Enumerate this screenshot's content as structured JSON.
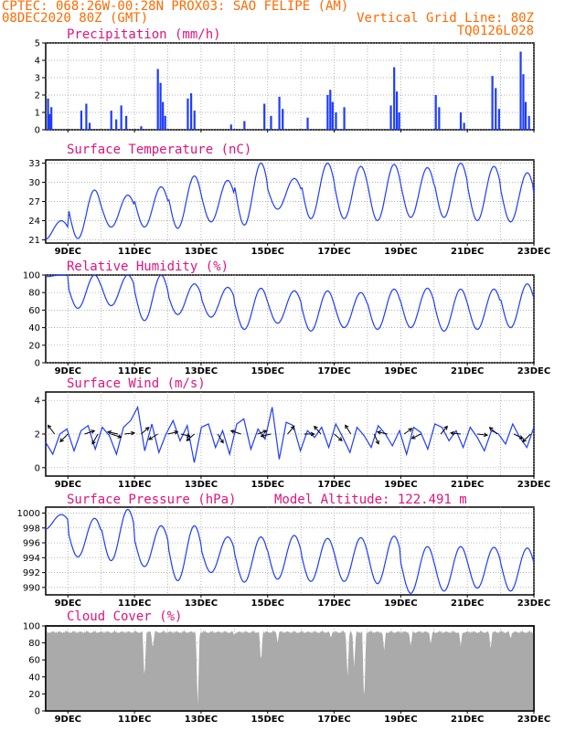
{
  "header": {
    "line1": "CPTEC:   068:26W-00:28N   PROX03: SAO FELIPE (AM)",
    "line2_left": "08DEC2020 80Z (GMT)",
    "line2_right": "Vertical Grid Line: 80Z",
    "line3_right": "TQ0126L028"
  },
  "colors": {
    "series": "#1e3cff",
    "cloud": "#aaaaaa",
    "title": "#e0147c",
    "header": "#ff6a00"
  },
  "x_tick_labels": [
    "9DEC",
    "11DEC",
    "13DEC",
    "15DEC",
    "17DEC",
    "19DEC",
    "21DEC",
    "23DEC"
  ],
  "chart_data": [
    {
      "id": "precip",
      "type": "bar",
      "title": "Precipitation (mm/h)",
      "ylim": [
        0,
        5
      ],
      "yticks": [
        0,
        1,
        2,
        3,
        4,
        5
      ],
      "x_start_day": 8.333,
      "x_end_day": 23.0,
      "events": [
        {
          "day": 8.4,
          "v": 1.8
        },
        {
          "day": 8.45,
          "v": 0.9
        },
        {
          "day": 8.5,
          "v": 1.3
        },
        {
          "day": 9.4,
          "v": 1.1
        },
        {
          "day": 9.55,
          "v": 1.5
        },
        {
          "day": 9.65,
          "v": 0.4
        },
        {
          "day": 10.3,
          "v": 1.1
        },
        {
          "day": 10.45,
          "v": 0.6
        },
        {
          "day": 10.6,
          "v": 1.4
        },
        {
          "day": 10.75,
          "v": 0.8
        },
        {
          "day": 11.2,
          "v": 0.2
        },
        {
          "day": 11.7,
          "v": 3.5
        },
        {
          "day": 11.78,
          "v": 2.7
        },
        {
          "day": 11.85,
          "v": 1.6
        },
        {
          "day": 11.92,
          "v": 0.8
        },
        {
          "day": 12.6,
          "v": 1.8
        },
        {
          "day": 12.7,
          "v": 2.1
        },
        {
          "day": 12.8,
          "v": 1.1
        },
        {
          "day": 13.9,
          "v": 0.3
        },
        {
          "day": 14.3,
          "v": 0.5
        },
        {
          "day": 14.9,
          "v": 1.5
        },
        {
          "day": 15.1,
          "v": 0.8
        },
        {
          "day": 15.35,
          "v": 1.9
        },
        {
          "day": 15.45,
          "v": 1.2
        },
        {
          "day": 16.2,
          "v": 0.7
        },
        {
          "day": 16.8,
          "v": 2.0
        },
        {
          "day": 16.88,
          "v": 2.3
        },
        {
          "day": 16.95,
          "v": 1.6
        },
        {
          "day": 17.05,
          "v": 1.0
        },
        {
          "day": 17.3,
          "v": 1.3
        },
        {
          "day": 18.7,
          "v": 1.4
        },
        {
          "day": 18.8,
          "v": 3.6
        },
        {
          "day": 18.88,
          "v": 2.2
        },
        {
          "day": 18.95,
          "v": 1.0
        },
        {
          "day": 20.05,
          "v": 2.0
        },
        {
          "day": 20.15,
          "v": 1.3
        },
        {
          "day": 20.8,
          "v": 1.0
        },
        {
          "day": 20.9,
          "v": 0.4
        },
        {
          "day": 21.75,
          "v": 3.1
        },
        {
          "day": 21.85,
          "v": 2.4
        },
        {
          "day": 21.95,
          "v": 1.2
        },
        {
          "day": 22.6,
          "v": 4.5
        },
        {
          "day": 22.68,
          "v": 3.2
        },
        {
          "day": 22.75,
          "v": 1.6
        },
        {
          "day": 22.85,
          "v": 0.8
        }
      ]
    },
    {
      "id": "temp",
      "type": "line",
      "title": "Surface Temperature (nC)",
      "ylim": [
        20.5,
        33.5
      ],
      "yticks": [
        21,
        24,
        27,
        30,
        33
      ],
      "mean": 25.6,
      "daily": [
        {
          "day": 8,
          "min": 21.0,
          "max": 24.0
        },
        {
          "day": 9,
          "min": 21.2,
          "max": 28.8
        },
        {
          "day": 10,
          "min": 23.0,
          "max": 28.0
        },
        {
          "day": 11,
          "min": 23.0,
          "max": 29.3
        },
        {
          "day": 12,
          "min": 22.8,
          "max": 31.0
        },
        {
          "day": 13,
          "min": 23.8,
          "max": 30.3
        },
        {
          "day": 14,
          "min": 23.3,
          "max": 33.0
        },
        {
          "day": 15,
          "min": 25.8,
          "max": 30.6
        },
        {
          "day": 16,
          "min": 24.3,
          "max": 33.0
        },
        {
          "day": 17,
          "min": 24.3,
          "max": 32.5
        },
        {
          "day": 18,
          "min": 24.0,
          "max": 32.8
        },
        {
          "day": 19,
          "min": 24.5,
          "max": 32.3
        },
        {
          "day": 20,
          "min": 24.5,
          "max": 33.0
        },
        {
          "day": 21,
          "min": 24.0,
          "max": 32.5
        },
        {
          "day": 22,
          "min": 23.8,
          "max": 31.5
        },
        {
          "day": 23,
          "min": 24.5,
          "max": 30.0
        }
      ]
    },
    {
      "id": "rh",
      "type": "line",
      "title": "Relative Humidity (%)",
      "ylim": [
        0,
        100
      ],
      "yticks": [
        0,
        20,
        40,
        60,
        80,
        100
      ],
      "daily": [
        {
          "day": 8,
          "min": 98,
          "max": 100
        },
        {
          "day": 9,
          "min": 62,
          "max": 100
        },
        {
          "day": 10,
          "min": 65,
          "max": 100
        },
        {
          "day": 11,
          "min": 48,
          "max": 100
        },
        {
          "day": 12,
          "min": 55,
          "max": 90
        },
        {
          "day": 13,
          "min": 52,
          "max": 86
        },
        {
          "day": 14,
          "min": 38,
          "max": 85
        },
        {
          "day": 15,
          "min": 45,
          "max": 82
        },
        {
          "day": 16,
          "min": 36,
          "max": 82
        },
        {
          "day": 17,
          "min": 40,
          "max": 80
        },
        {
          "day": 18,
          "min": 38,
          "max": 84
        },
        {
          "day": 19,
          "min": 40,
          "max": 85
        },
        {
          "day": 20,
          "min": 36,
          "max": 84
        },
        {
          "day": 21,
          "min": 38,
          "max": 84
        },
        {
          "day": 22,
          "min": 40,
          "max": 90
        },
        {
          "day": 23,
          "min": 58,
          "max": 82
        }
      ]
    },
    {
      "id": "wind",
      "type": "line",
      "title": "Surface Wind (m/s)",
      "ylim": [
        -0.5,
        4.5
      ],
      "yticks": [
        0,
        2,
        4
      ],
      "speed": [
        1.5,
        0.8,
        2.0,
        2.3,
        1.0,
        2.2,
        2.5,
        1.1,
        2.4,
        1.9,
        0.8,
        2.4,
        2.8,
        3.6,
        1.0,
        2.6,
        0.9,
        2.0,
        2.8,
        1.6,
        2.5,
        0.3,
        2.4,
        2.6,
        1.2,
        2.2,
        0.8,
        2.6,
        2.9,
        1.1,
        2.3,
        1.7,
        3.6,
        0.5,
        2.7,
        2.5,
        1.0,
        2.2,
        1.8,
        2.4,
        1.2,
        2.6,
        1.8,
        0.9,
        2.4,
        1.9,
        1.2,
        2.5,
        2.0,
        1.3,
        2.2,
        0.8,
        2.4,
        2.1,
        1.1,
        2.6,
        2.4,
        1.6,
        2.2,
        1.2,
        2.4,
        1.8,
        1.0,
        2.2,
        2.0,
        1.4,
        2.6,
        1.8,
        1.2,
        2.4
      ],
      "arrows": [
        {
          "day": 8.6,
          "u": -0.6,
          "v": 0.8
        },
        {
          "day": 9.0,
          "u": -0.7,
          "v": -0.7
        },
        {
          "day": 9.5,
          "u": 0.9,
          "v": 0.3
        },
        {
          "day": 9.9,
          "u": -0.5,
          "v": -0.9
        },
        {
          "day": 10.3,
          "u": 0.9,
          "v": -0.3
        },
        {
          "day": 10.5,
          "u": -0.9,
          "v": 0.2
        },
        {
          "day": 10.7,
          "u": 0.9,
          "v": 0.1
        },
        {
          "day": 11.2,
          "u": 0.7,
          "v": 0.6
        },
        {
          "day": 11.7,
          "u": -0.8,
          "v": -0.5
        },
        {
          "day": 12.0,
          "u": 0.9,
          "v": 0.2
        },
        {
          "day": 12.4,
          "u": 0.8,
          "v": -0.2
        },
        {
          "day": 12.8,
          "u": -0.7,
          "v": -0.6
        },
        {
          "day": 13.5,
          "u": 0.5,
          "v": -0.8
        },
        {
          "day": 14.2,
          "u": -0.9,
          "v": 0.3
        },
        {
          "day": 14.7,
          "u": 0.8,
          "v": 0.3
        },
        {
          "day": 15.1,
          "u": -0.9,
          "v": -0.2
        },
        {
          "day": 15.6,
          "u": 0.6,
          "v": 0.7
        },
        {
          "day": 16.1,
          "u": 0.9,
          "v": 0.0
        },
        {
          "day": 16.6,
          "u": -0.6,
          "v": 0.7
        },
        {
          "day": 17.0,
          "u": 0.7,
          "v": -0.6
        },
        {
          "day": 17.5,
          "u": -0.5,
          "v": 0.8
        },
        {
          "day": 18.2,
          "u": 0.4,
          "v": -0.9
        },
        {
          "day": 18.6,
          "u": -0.9,
          "v": 0.2
        },
        {
          "day": 19.1,
          "u": 0.7,
          "v": 0.5
        },
        {
          "day": 19.6,
          "u": -0.8,
          "v": -0.4
        },
        {
          "day": 20.2,
          "u": 0.6,
          "v": 0.7
        },
        {
          "day": 20.8,
          "u": -0.9,
          "v": 0.1
        },
        {
          "day": 21.3,
          "u": 0.9,
          "v": -0.1
        },
        {
          "day": 21.9,
          "u": -0.7,
          "v": 0.6
        },
        {
          "day": 22.4,
          "u": 0.8,
          "v": -0.4
        },
        {
          "day": 22.9,
          "u": -0.7,
          "v": -0.7
        }
      ]
    },
    {
      "id": "pres",
      "type": "line",
      "title": "Surface Pressure (hPa)",
      "subtitle": "Model Altitude: 122.491 m",
      "ylim": [
        989.0,
        1000.8
      ],
      "yticks": [
        990,
        992,
        994,
        996,
        998,
        1000
      ],
      "daily": [
        {
          "day": 8,
          "min": 997.8,
          "max": 999.8
        },
        {
          "day": 9,
          "min": 994.1,
          "max": 999.3
        },
        {
          "day": 10,
          "min": 993.6,
          "max": 1000.5
        },
        {
          "day": 11,
          "min": 992.8,
          "max": 998.3
        },
        {
          "day": 12,
          "min": 990.9,
          "max": 998.3
        },
        {
          "day": 13,
          "min": 992.0,
          "max": 996.8
        },
        {
          "day": 14,
          "min": 990.7,
          "max": 996.8
        },
        {
          "day": 15,
          "min": 991.1,
          "max": 997.0
        },
        {
          "day": 16,
          "min": 990.8,
          "max": 996.6
        },
        {
          "day": 17,
          "min": 990.8,
          "max": 996.7
        },
        {
          "day": 18,
          "min": 990.5,
          "max": 996.9
        },
        {
          "day": 19,
          "min": 989.2,
          "max": 995.5
        },
        {
          "day": 20,
          "min": 989.5,
          "max": 995.5
        },
        {
          "day": 21,
          "min": 989.9,
          "max": 995.4
        },
        {
          "day": 22,
          "min": 989.5,
          "max": 995.3
        },
        {
          "day": 23,
          "min": 990.0,
          "max": 995.0
        }
      ]
    },
    {
      "id": "cloud",
      "type": "area",
      "title": "Cloud Cover (%)",
      "ylim": [
        0,
        100
      ],
      "yticks": [
        0,
        20,
        40,
        60,
        80,
        100
      ],
      "baseline": 96,
      "dips": [
        {
          "day": 11.3,
          "v": 34
        },
        {
          "day": 11.55,
          "v": 72
        },
        {
          "day": 12.9,
          "v": 1
        },
        {
          "day": 14.0,
          "v": 88
        },
        {
          "day": 14.8,
          "v": 55
        },
        {
          "day": 15.3,
          "v": 80
        },
        {
          "day": 16.9,
          "v": 85
        },
        {
          "day": 17.4,
          "v": 38
        },
        {
          "day": 17.6,
          "v": 50
        },
        {
          "day": 17.9,
          "v": 5
        },
        {
          "day": 18.5,
          "v": 70
        },
        {
          "day": 19.3,
          "v": 74
        },
        {
          "day": 19.9,
          "v": 78
        },
        {
          "day": 20.8,
          "v": 76
        },
        {
          "day": 21.7,
          "v": 72
        },
        {
          "day": 22.3,
          "v": 84
        }
      ]
    }
  ]
}
